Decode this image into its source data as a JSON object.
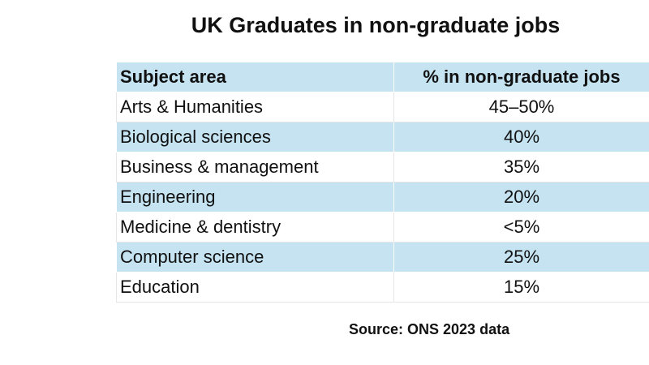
{
  "header": {
    "title": "UK Graduates in non-graduate jobs"
  },
  "table": {
    "columns": [
      "Subject area",
      "% in non-graduate jobs"
    ],
    "rows": [
      [
        "Arts & Humanities",
        "45–50%"
      ],
      [
        "Biological sciences",
        "40%"
      ],
      [
        "Business & management",
        "35%"
      ],
      [
        "Engineering",
        "20%"
      ],
      [
        "Medicine & dentistry",
        "<5%"
      ],
      [
        "Computer science",
        "25%"
      ],
      [
        "Education",
        "15%"
      ]
    ]
  },
  "footer": {
    "source": "Source: ONS 2023 data"
  }
}
